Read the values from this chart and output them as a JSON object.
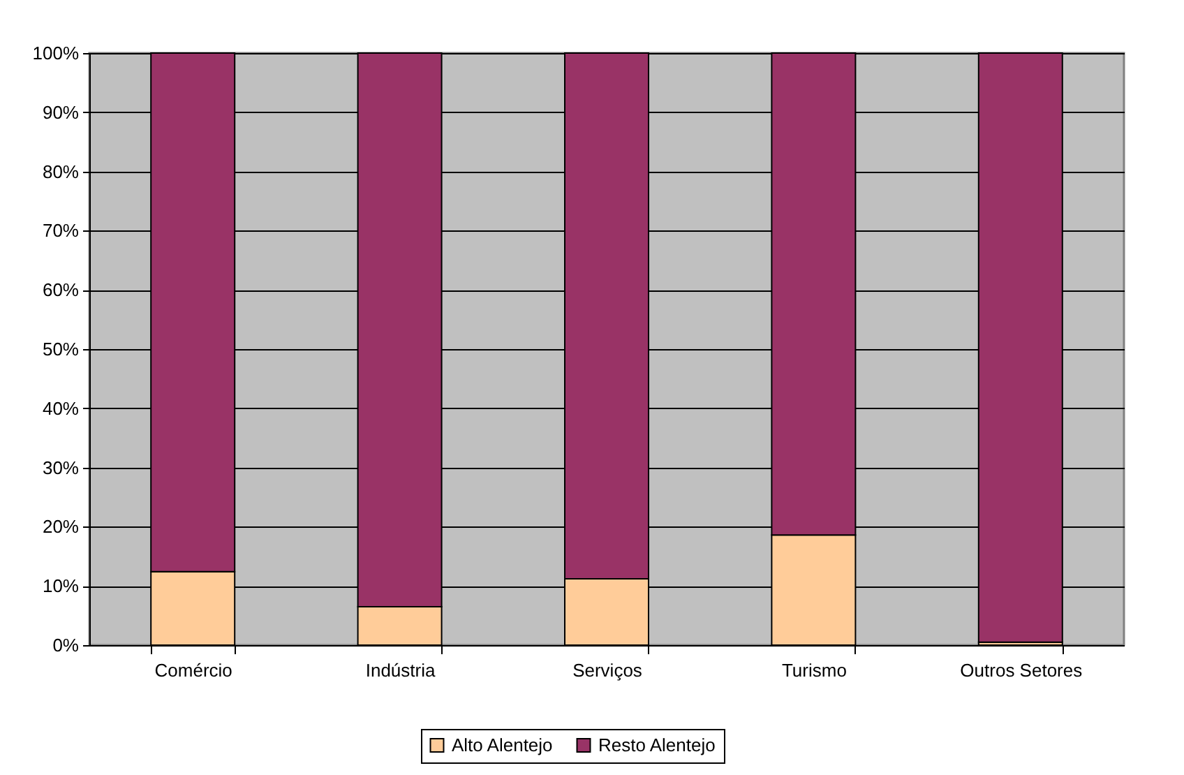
{
  "chart_data": {
    "type": "bar",
    "categories": [
      "Comércio",
      "Indústria",
      "Serviços",
      "Turismo",
      "Outros Setores"
    ],
    "series": [
      {
        "name": "Alto Alentejo",
        "color": "#ffcc99",
        "values": [
          12.4,
          6.5,
          11.2,
          18.6,
          0.5
        ]
      },
      {
        "name": "Resto Alentejo",
        "color": "#993366",
        "values": [
          87.6,
          93.5,
          88.8,
          81.4,
          99.5
        ]
      }
    ],
    "stacked": true,
    "ylim": [
      0,
      100
    ],
    "yticks": [
      {
        "value": 0,
        "label": "0%"
      },
      {
        "value": 10,
        "label": "10%"
      },
      {
        "value": 20,
        "label": "20%"
      },
      {
        "value": 30,
        "label": "30%"
      },
      {
        "value": 40,
        "label": "40%"
      },
      {
        "value": 50,
        "label": "50%"
      },
      {
        "value": 60,
        "label": "60%"
      },
      {
        "value": 70,
        "label": "70%"
      },
      {
        "value": 80,
        "label": "80%"
      },
      {
        "value": 90,
        "label": "90%"
      },
      {
        "value": 100,
        "label": "100%"
      }
    ],
    "grid": "y",
    "legend": "bottom"
  }
}
